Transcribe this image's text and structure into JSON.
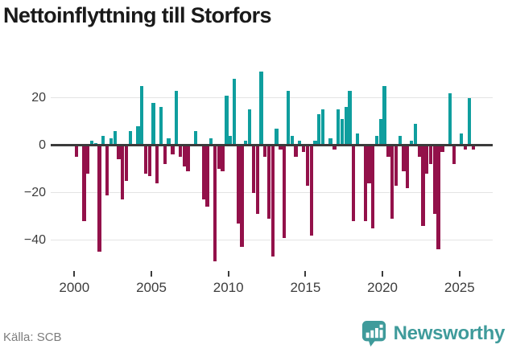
{
  "title": "Nettoinflyttning till Storfors",
  "source": "Källa: SCB",
  "logo": {
    "text": "Newsworthy"
  },
  "colors": {
    "positive": "#0f9e9e",
    "negative": "#93114a",
    "zero_line": "#3b3b3b",
    "grid": "#e4e4e4",
    "axis_text": "#3d3d3d",
    "title_text": "#1a1a1a",
    "source_text": "#7d7d7d",
    "logo": "#3f9b9b"
  },
  "y_axis": {
    "ticks": [
      20,
      0,
      -20,
      -40
    ]
  },
  "x_axis": {
    "ticks": [
      "2000",
      "2005",
      "2010",
      "2015",
      "2020",
      "2025"
    ]
  },
  "chart_data": {
    "type": "bar",
    "frequency": "quarterly",
    "title": "Nettoinflyttning till Storfors",
    "xlabel": "",
    "ylabel": "",
    "ylim": [
      -52,
      36
    ],
    "grid": "horizontal",
    "legend": "none",
    "years": [
      {
        "year": 2000,
        "quarters": [
          -5,
          0,
          -32,
          -12
        ]
      },
      {
        "year": 2001,
        "quarters": [
          2,
          1,
          -45,
          4
        ]
      },
      {
        "year": 2002,
        "quarters": [
          -21,
          3,
          6,
          -6
        ]
      },
      {
        "year": 2003,
        "quarters": [
          -23,
          -15,
          6,
          0
        ]
      },
      {
        "year": 2004,
        "quarters": [
          8,
          25,
          -12,
          -13
        ]
      },
      {
        "year": 2005,
        "quarters": [
          18,
          -16,
          16,
          -8
        ]
      },
      {
        "year": 2006,
        "quarters": [
          3,
          -4,
          23,
          -5
        ]
      },
      {
        "year": 2007,
        "quarters": [
          -9,
          -11,
          0,
          6
        ]
      },
      {
        "year": 2008,
        "quarters": [
          0,
          -23,
          -26,
          3
        ]
      },
      {
        "year": 2009,
        "quarters": [
          -49,
          -10,
          -11,
          21
        ]
      },
      {
        "year": 2010,
        "quarters": [
          4,
          28,
          -33,
          -43
        ]
      },
      {
        "year": 2011,
        "quarters": [
          2,
          15,
          -20,
          -29
        ]
      },
      {
        "year": 2012,
        "quarters": [
          31,
          -5,
          -31,
          -47
        ]
      },
      {
        "year": 2013,
        "quarters": [
          7,
          -2,
          -39,
          23
        ]
      },
      {
        "year": 2014,
        "quarters": [
          4,
          -5,
          2,
          -3
        ]
      },
      {
        "year": 2015,
        "quarters": [
          -17,
          -38,
          2,
          13
        ]
      },
      {
        "year": 2016,
        "quarters": [
          15,
          0,
          3,
          -2
        ]
      },
      {
        "year": 2017,
        "quarters": [
          15,
          11,
          16,
          23
        ]
      },
      {
        "year": 2018,
        "quarters": [
          -32,
          5,
          0,
          -32
        ]
      },
      {
        "year": 2019,
        "quarters": [
          -16,
          -35,
          4,
          11
        ]
      },
      {
        "year": 2020,
        "quarters": [
          25,
          -5,
          -31,
          -17
        ]
      },
      {
        "year": 2021,
        "quarters": [
          4,
          -11,
          -18,
          2
        ]
      },
      {
        "year": 2022,
        "quarters": [
          9,
          -5,
          -34,
          -12
        ]
      },
      {
        "year": 2023,
        "quarters": [
          -8,
          -29,
          -44,
          -3
        ]
      },
      {
        "year": 2024,
        "quarters": [
          0,
          22,
          -8,
          0
        ]
      },
      {
        "year": 2025,
        "quarters": [
          5,
          -2,
          20,
          -2
        ]
      }
    ]
  }
}
